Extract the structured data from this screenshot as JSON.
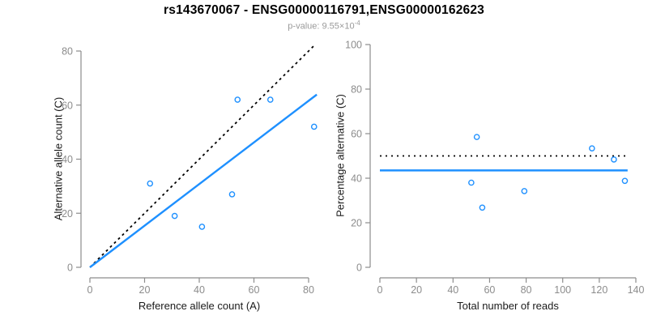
{
  "header": {
    "title": "rs143670067 - ENSG00000116791,ENSG00000162623",
    "pvalue_prefix": "p-value: ",
    "pvalue_mantissa": "9.55×10",
    "pvalue_exponent": "-4"
  },
  "colors": {
    "accent_blue": "#1E90FF",
    "axis_gray": "#8c8c8c",
    "line_black": "#000000",
    "subtitle_gray": "#9a9a9a"
  },
  "chart_data": [
    {
      "name": "allele-count-scatter",
      "type": "scatter",
      "xlabel": "Reference allele count (A)",
      "ylabel": "Alternative allele count (C)",
      "xlim": [
        0,
        80
      ],
      "ylim": [
        0,
        80
      ],
      "xticks": [
        0,
        20,
        40,
        60,
        80
      ],
      "yticks": [
        0,
        20,
        40,
        60,
        80
      ],
      "grid": false,
      "point_color": "#1E90FF",
      "points": [
        [
          22,
          31
        ],
        [
          31,
          19
        ],
        [
          41,
          15
        ],
        [
          52,
          27
        ],
        [
          54,
          62
        ],
        [
          66,
          62
        ],
        [
          82,
          52
        ]
      ],
      "lines": [
        {
          "name": "identity-line",
          "role": "y = x expected 50/50 line",
          "style": "dashed",
          "color": "#000000",
          "from": [
            0,
            0
          ],
          "to": [
            82,
            82
          ]
        },
        {
          "name": "fit-line",
          "role": "observed ratio fit, slope 0.77",
          "style": "solid",
          "color": "#1E90FF",
          "from": [
            0,
            0
          ],
          "to": [
            83,
            63.9
          ]
        }
      ]
    },
    {
      "name": "percentage-scatter",
      "type": "scatter",
      "xlabel": "Total number of reads",
      "ylabel": "Percentage alternative (C)",
      "xlim": [
        0,
        140
      ],
      "ylim": [
        0,
        100
      ],
      "xticks": [
        0,
        20,
        40,
        60,
        80,
        100,
        120,
        140
      ],
      "yticks": [
        0,
        20,
        40,
        60,
        80,
        100
      ],
      "grid": false,
      "point_color": "#1E90FF",
      "points": [
        [
          53,
          58.5
        ],
        [
          50,
          38
        ],
        [
          56,
          26.8
        ],
        [
          79,
          34.2
        ],
        [
          116,
          53.4
        ],
        [
          128,
          48.4
        ],
        [
          134,
          38.8
        ]
      ],
      "lines": [
        {
          "name": "fifty-percent-line",
          "role": "null expectation 50%",
          "style": "dotted",
          "color": "#000000",
          "from": [
            0,
            50
          ],
          "to": [
            135.5,
            50
          ]
        },
        {
          "name": "mean-percentage-line",
          "role": "overall alternative fraction 43.5%",
          "style": "solid",
          "color": "#1E90FF",
          "from": [
            0,
            43.5
          ],
          "to": [
            135.5,
            43.5
          ]
        }
      ]
    }
  ]
}
